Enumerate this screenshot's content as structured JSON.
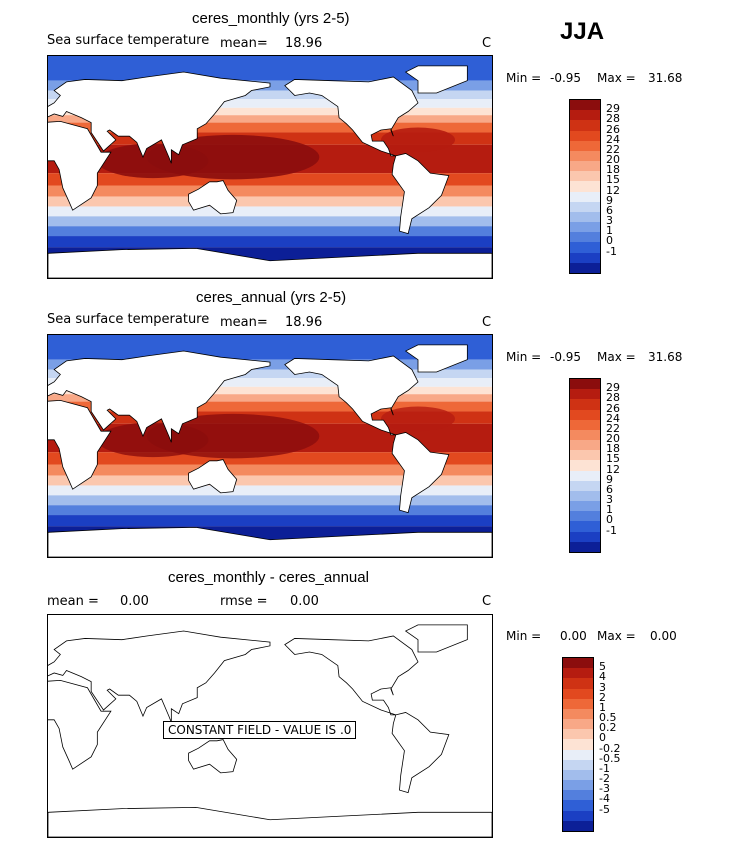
{
  "season": "JJA",
  "panels": [
    {
      "title": "ceres_monthly (yrs 2-5)",
      "variable": "Sea surface temperature",
      "mean_label": "mean=",
      "mean_value": "18.96",
      "units": "C",
      "min_label": "Min =",
      "min_value": "-0.95",
      "max_label": "Max =",
      "max_value": "31.68",
      "colorbar_levels": [
        "29",
        "28",
        "26",
        "24",
        "22",
        "20",
        "18",
        "15",
        "12",
        "9",
        "6",
        "3",
        "1",
        "0",
        "-1"
      ]
    },
    {
      "title": "ceres_annual (yrs 2-5)",
      "variable": "Sea surface temperature",
      "mean_label": "mean=",
      "mean_value": "18.96",
      "units": "C",
      "min_label": "Min =",
      "min_value": "-0.95",
      "max_label": "Max =",
      "max_value": "31.68",
      "colorbar_levels": [
        "29",
        "28",
        "26",
        "24",
        "22",
        "20",
        "18",
        "15",
        "12",
        "9",
        "6",
        "3",
        "1",
        "0",
        "-1"
      ]
    },
    {
      "title": "ceres_monthly - ceres_annual",
      "mean_label": "mean =",
      "mean_value": "0.00",
      "rmse_label": "rmse =",
      "rmse_value": "0.00",
      "units": "C",
      "min_label": "Min =",
      "min_value": "0.00",
      "max_label": "Max =",
      "max_value": "0.00",
      "constant_field_text": "CONSTANT FIELD - VALUE IS .0",
      "colorbar_levels": [
        "5",
        "4",
        "3",
        "2",
        "1",
        "0.5",
        "0.2",
        "0",
        "-0.2",
        "-0.5",
        "-1",
        "-2",
        "-3",
        "-4",
        "-5"
      ]
    }
  ],
  "colors": {
    "sst_scale": [
      "#8b0d0d",
      "#b51c10",
      "#cf3214",
      "#e2491f",
      "#ee6838",
      "#f48a5f",
      "#f8a887",
      "#fbc7ae",
      "#fde3d4",
      "#e8eef8",
      "#c5d6f2",
      "#a2bdec",
      "#7a9fe6",
      "#537fdd",
      "#2f5fd6",
      "#1b3fc3",
      "#0c1f97"
    ],
    "diff_scale": [
      "#8b0d0d",
      "#b51c10",
      "#cf3214",
      "#e2491f",
      "#ee6838",
      "#f48a5f",
      "#f8a887",
      "#fbc7ae",
      "#fde3d4",
      "#e8eef8",
      "#c5d6f2",
      "#a2bdec",
      "#7a9fe6",
      "#537fdd",
      "#2f5fd6",
      "#1b3fc3",
      "#0c1f97"
    ],
    "land": "#ffffff",
    "coast": "#000000"
  }
}
